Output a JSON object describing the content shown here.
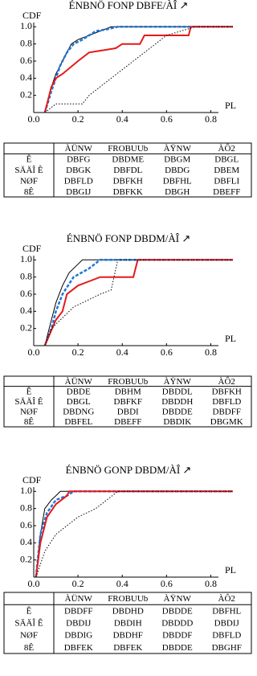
{
  "chart_data": [
    {
      "type": "line",
      "title": "ÉNBNÖ FONP DBFE/ÀÎ ↗",
      "ylabel": "CDF",
      "xlabel": "PL",
      "xlim": [
        0,
        0.9
      ],
      "ylim": [
        0,
        1.05
      ],
      "xticks": [
        {
          "value": 0,
          "label": "0.0"
        },
        0.2,
        0.4,
        0.6,
        0.8
      ],
      "yticks": [
        0.2,
        0.4,
        0.6,
        0.8,
        {
          "value": 1,
          "label": "1.0"
        }
      ],
      "series": [
        {
          "color": "#000000",
          "style": "solid",
          "width": 1,
          "x": [
            0.05,
            0.08,
            0.1,
            0.13,
            0.17,
            0.2,
            0.25,
            0.3,
            0.35,
            0.9
          ],
          "values": [
            0,
            0.3,
            0.45,
            0.6,
            0.8,
            0.85,
            0.9,
            0.95,
            1,
            1
          ]
        },
        {
          "color": "#1f77d4",
          "style": "dashed",
          "width": 2.5,
          "x": [
            0.05,
            0.08,
            0.12,
            0.15,
            0.18,
            0.22,
            0.28,
            0.33,
            0.38,
            0.9
          ],
          "values": [
            0,
            0.25,
            0.55,
            0.7,
            0.8,
            0.85,
            0.95,
            0.97,
            1,
            1
          ]
        },
        {
          "color": "#e41a1c",
          "style": "solid",
          "width": 2,
          "x": [
            0.05,
            0.08,
            0.1,
            0.13,
            0.2,
            0.25,
            0.37,
            0.4,
            0.48,
            0.5,
            0.7,
            0.71,
            0.9
          ],
          "values": [
            0,
            0.3,
            0.4,
            0.45,
            0.6,
            0.7,
            0.75,
            0.8,
            0.8,
            0.9,
            0.9,
            1,
            1
          ]
        },
        {
          "color": "#000000",
          "style": "dotted",
          "width": 1,
          "x": [
            0.05,
            0.1,
            0.22,
            0.25,
            0.3,
            0.35,
            0.4,
            0.45,
            0.55,
            0.6,
            0.73,
            0.9
          ],
          "values": [
            0,
            0.1,
            0.1,
            0.2,
            0.3,
            0.4,
            0.5,
            0.6,
            0.8,
            0.9,
            1,
            1
          ]
        }
      ]
    },
    {
      "type": "line",
      "title": "ÉNBNÖ FONP DBDM/ÀÎ ↗",
      "ylabel": "CDF",
      "xlabel": "PL",
      "xlim": [
        0,
        0.9
      ],
      "ylim": [
        0,
        1.05
      ],
      "xticks": [
        {
          "value": 0,
          "label": "0.0"
        },
        0.2,
        0.4,
        0.6,
        0.8
      ],
      "yticks": [
        0.2,
        0.4,
        0.6,
        0.8,
        {
          "value": 1,
          "label": "1.0"
        }
      ],
      "series": [
        {
          "color": "#000000",
          "style": "solid",
          "width": 1,
          "x": [
            0.05,
            0.08,
            0.1,
            0.13,
            0.16,
            0.2,
            0.22,
            0.9
          ],
          "values": [
            0,
            0.3,
            0.5,
            0.7,
            0.85,
            0.95,
            1,
            1
          ]
        },
        {
          "color": "#1f77d4",
          "style": "dashed",
          "width": 2.5,
          "x": [
            0.05,
            0.08,
            0.1,
            0.13,
            0.18,
            0.25,
            0.3,
            0.9
          ],
          "values": [
            0,
            0.2,
            0.4,
            0.6,
            0.8,
            0.9,
            1,
            1
          ]
        },
        {
          "color": "#e41a1c",
          "style": "solid",
          "width": 2,
          "x": [
            0.05,
            0.1,
            0.13,
            0.15,
            0.2,
            0.25,
            0.3,
            0.45,
            0.47,
            0.9
          ],
          "values": [
            0,
            0.3,
            0.4,
            0.6,
            0.7,
            0.75,
            0.8,
            0.8,
            1,
            1
          ]
        },
        {
          "color": "#000000",
          "style": "dotted",
          "width": 1,
          "x": [
            0.05,
            0.08,
            0.12,
            0.18,
            0.22,
            0.3,
            0.35,
            0.38,
            0.9
          ],
          "values": [
            0,
            0.2,
            0.3,
            0.45,
            0.5,
            0.6,
            0.65,
            1,
            1
          ]
        }
      ]
    },
    {
      "type": "line",
      "title": "ÉNBNÖ GONP DBDM/ÀÎ ↗",
      "ylabel": "CDF",
      "xlabel": "PL",
      "xlim": [
        0,
        0.9
      ],
      "ylim": [
        0,
        1.05
      ],
      "xticks": [
        {
          "value": 0,
          "label": "0.0"
        },
        0.2,
        0.4,
        0.6,
        0.8
      ],
      "yticks": [
        0.2,
        0.4,
        0.6,
        0.8,
        {
          "value": 1,
          "label": "1.0"
        }
      ],
      "series": [
        {
          "color": "#000000",
          "style": "solid",
          "width": 1,
          "x": [
            0.01,
            0.03,
            0.05,
            0.08,
            0.1,
            0.12,
            0.9
          ],
          "values": [
            0,
            0.5,
            0.8,
            0.9,
            0.95,
            1,
            1
          ]
        },
        {
          "color": "#1f77d4",
          "style": "dashed",
          "width": 2.5,
          "x": [
            0.01,
            0.03,
            0.06,
            0.1,
            0.15,
            0.18,
            0.9
          ],
          "values": [
            0,
            0.5,
            0.75,
            0.9,
            0.95,
            1,
            1
          ]
        },
        {
          "color": "#e41a1c",
          "style": "solid",
          "width": 2,
          "x": [
            0.01,
            0.03,
            0.06,
            0.1,
            0.15,
            0.16,
            0.9
          ],
          "values": [
            0,
            0.4,
            0.7,
            0.85,
            0.95,
            1,
            1
          ]
        },
        {
          "color": "#000000",
          "style": "dotted",
          "width": 1,
          "x": [
            0.01,
            0.05,
            0.1,
            0.2,
            0.28,
            0.33,
            0.38,
            0.9
          ],
          "values": [
            0,
            0.3,
            0.5,
            0.7,
            0.8,
            0.9,
            1,
            1
          ]
        }
      ]
    }
  ],
  "tables": [
    {
      "header": [
        "ÀÜNW",
        "FROBUUb",
        "ÀŸNW",
        "ÀÔ2"
      ],
      "rows": [
        [
          "Ê",
          "DBFG",
          "DBDME",
          "DBGM",
          "DBGL"
        ],
        [
          "SÄÄÎ Ê",
          "DBGK",
          "DBFDL",
          "DBDG",
          "DBEM"
        ],
        [
          "NØF",
          "DBFLD",
          "DBFKH",
          "DBFHL",
          "DBFLI"
        ],
        [
          "8Ê",
          "DBGIJ",
          "DBFKK",
          "DBGH",
          "DBEFF"
        ]
      ]
    },
    {
      "header": [
        "ÀÜNW",
        "FROBUUb",
        "ÀŸNW",
        "ÀÔ2"
      ],
      "rows": [
        [
          "Ê",
          "DBDE",
          "DBHM",
          "DBDDL",
          "DBFKH"
        ],
        [
          "SÄÄÎ Ê",
          "DBGL",
          "DBFKF",
          "DBDDH",
          "DBFLD"
        ],
        [
          "NØF",
          "DBDNG",
          "DBDI",
          "DBDDE",
          "DBDFF"
        ],
        [
          "8Ê",
          "DBFEL",
          "DBEFF",
          "DBDIK",
          "DBGMK"
        ]
      ]
    },
    {
      "header": [
        "ÀÜNW",
        "FROBUUb",
        "ÀŸNW",
        "ÀÔ2"
      ],
      "rows": [
        [
          "Ê",
          "DBDFF",
          "DBDHD",
          "DBDDE",
          "DBFHL"
        ],
        [
          "SÄÄÎ Ê",
          "DBDIJ",
          "DBDIH",
          "DBDDD",
          "DBDIJ"
        ],
        [
          "NØF",
          "DBDIG",
          "DBDHF",
          "DBDDF",
          "DBFLD"
        ],
        [
          "8Ê",
          "DBFEK",
          "DBFEK",
          "DBDDE",
          "DBGHF"
        ]
      ]
    }
  ]
}
